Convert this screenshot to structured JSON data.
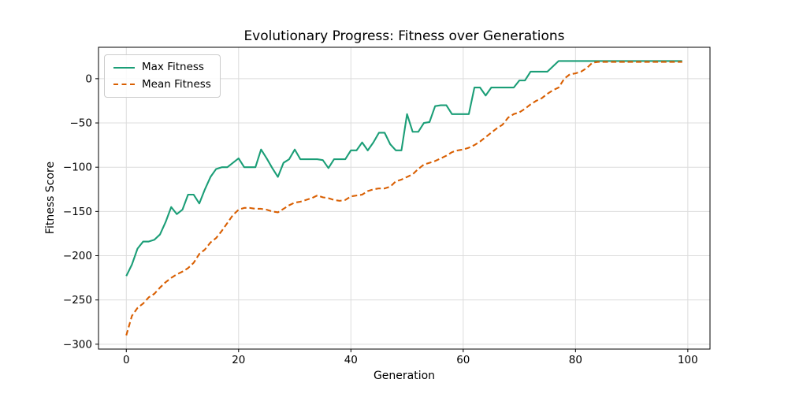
{
  "chart_data": {
    "type": "line",
    "title": "Evolutionary Progress: Fitness over Generations",
    "xlabel": "Generation",
    "ylabel": "Fitness Score",
    "grid": true,
    "legend_position": "upper left",
    "xlim": [
      -4.95,
      103.95
    ],
    "ylim": [
      -305.5,
      35.5
    ],
    "grid_color": "#dcdcdc",
    "spine_color": "#000000",
    "x_ticks": {
      "values": [
        0,
        20,
        40,
        60,
        80,
        100
      ],
      "labels": [
        "0",
        "20",
        "40",
        "60",
        "80",
        "100"
      ]
    },
    "y_ticks": {
      "values": [
        0,
        -50,
        -100,
        -150,
        -200,
        -250,
        -300
      ],
      "labels": [
        "0",
        "−50",
        "−100",
        "−150",
        "−200",
        "−250",
        "−300"
      ]
    },
    "x": [
      0,
      1,
      2,
      3,
      4,
      5,
      6,
      7,
      8,
      9,
      10,
      11,
      12,
      13,
      14,
      15,
      16,
      17,
      18,
      19,
      20,
      21,
      22,
      23,
      24,
      25,
      26,
      27,
      28,
      29,
      30,
      31,
      32,
      33,
      34,
      35,
      36,
      37,
      38,
      39,
      40,
      41,
      42,
      43,
      44,
      45,
      46,
      47,
      48,
      49,
      50,
      51,
      52,
      53,
      54,
      55,
      56,
      57,
      58,
      59,
      60,
      61,
      62,
      63,
      64,
      65,
      66,
      67,
      68,
      69,
      70,
      71,
      72,
      73,
      74,
      75,
      76,
      77,
      78,
      79,
      80,
      81,
      82,
      83,
      84,
      85,
      86,
      87,
      88,
      89,
      90,
      91,
      92,
      93,
      94,
      95,
      96,
      97,
      98,
      99
    ],
    "series": [
      {
        "name": "Max Fitness",
        "color": "#1b9e77",
        "linestyle": "solid",
        "values": [
          -223,
          -210,
          -192,
          -184,
          -184,
          -182,
          -176,
          -162,
          -145,
          -153,
          -148,
          -131,
          -131,
          -141,
          -125,
          -111,
          -102,
          -100,
          -100,
          -95,
          -90,
          -100,
          -100,
          -100,
          -80,
          -90,
          -101,
          -111,
          -95,
          -91,
          -80,
          -91,
          -91,
          -91,
          -91,
          -92,
          -101,
          -91,
          -91,
          -91,
          -81,
          -81,
          -72,
          -81,
          -72,
          -61,
          -61,
          -74,
          -81,
          -81,
          -40,
          -60,
          -60,
          -50,
          -49,
          -31,
          -30,
          -30,
          -40,
          -40,
          -40,
          -40,
          -10,
          -10,
          -19,
          -10,
          -10,
          -10,
          -10,
          -10,
          -2,
          -2,
          8,
          8,
          8,
          8,
          14,
          20,
          20,
          20,
          20,
          20,
          20,
          20,
          20,
          20,
          20,
          20,
          20,
          20,
          20,
          20,
          20,
          20,
          20,
          20,
          20,
          20,
          20,
          20
        ]
      },
      {
        "name": "Mean Fitness",
        "color": "#d95f02",
        "linestyle": "dashed",
        "values": [
          -290,
          -268,
          -259,
          -254,
          -247,
          -243,
          -236,
          -230,
          -225,
          -221,
          -218,
          -214,
          -208,
          -198,
          -193,
          -185,
          -180,
          -172,
          -163,
          -154,
          -148,
          -146,
          -146,
          -147,
          -147,
          -148,
          -150,
          -151,
          -147,
          -143,
          -140,
          -139,
          -137,
          -135,
          -132,
          -134,
          -135,
          -137,
          -138,
          -137,
          -133,
          -132,
          -131,
          -127,
          -125,
          -124,
          -124,
          -122,
          -116,
          -114,
          -111,
          -108,
          -102,
          -97,
          -95,
          -93,
          -90,
          -87,
          -83,
          -81,
          -80,
          -78,
          -75,
          -71,
          -66,
          -61,
          -56,
          -52,
          -44,
          -40,
          -38,
          -34,
          -29,
          -25,
          -22,
          -17,
          -13,
          -10,
          0,
          5,
          6,
          8,
          12,
          18,
          19,
          19,
          19,
          19,
          19,
          19,
          19,
          19,
          19,
          19,
          19,
          19,
          19,
          19,
          19,
          19
        ]
      }
    ]
  }
}
